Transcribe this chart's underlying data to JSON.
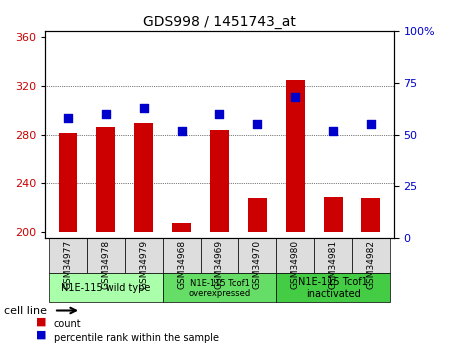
{
  "title": "GDS998 / 1451743_at",
  "categories": [
    "GSM34977",
    "GSM34978",
    "GSM34979",
    "GSM34968",
    "GSM34969",
    "GSM34970",
    "GSM34980",
    "GSM34981",
    "GSM34982"
  ],
  "count_values": [
    281,
    286,
    290,
    207,
    284,
    228,
    325,
    229,
    228
  ],
  "percentile_values": [
    58,
    60,
    63,
    52,
    60,
    55,
    68,
    52,
    55
  ],
  "ylim_left": [
    195,
    365
  ],
  "ylim_right": [
    0,
    100
  ],
  "yticks_left": [
    200,
    240,
    280,
    320,
    360
  ],
  "yticks_right": [
    0,
    25,
    50,
    75,
    100
  ],
  "yticklabels_right": [
    "0",
    "25",
    "50",
    "75",
    "100%"
  ],
  "bar_color": "#cc0000",
  "dot_color": "#0000cc",
  "bar_width": 0.5,
  "grid_color": "#000000",
  "bg_color": "#ffffff",
  "plot_bg_color": "#ffffff",
  "tick_label_color_left": "#cc0000",
  "tick_label_color_right": "#0000cc",
  "groups": [
    {
      "label": "N1E-115 wild type",
      "start": 0,
      "end": 3,
      "color": "#aaffaa",
      "fontsize": 8
    },
    {
      "label": "N1E-115 Tcof1\noverexpressed",
      "start": 3,
      "end": 6,
      "color": "#66dd66",
      "fontsize": 7
    },
    {
      "label": "N1E-115 Tcof1\ninactivated",
      "start": 6,
      "end": 9,
      "color": "#44cc44",
      "fontsize": 8
    }
  ],
  "legend_items": [
    {
      "color": "#cc0000",
      "label": "count"
    },
    {
      "color": "#0000cc",
      "label": "percentile rank within the sample"
    }
  ],
  "cell_line_label": "cell line",
  "base_value": 200
}
